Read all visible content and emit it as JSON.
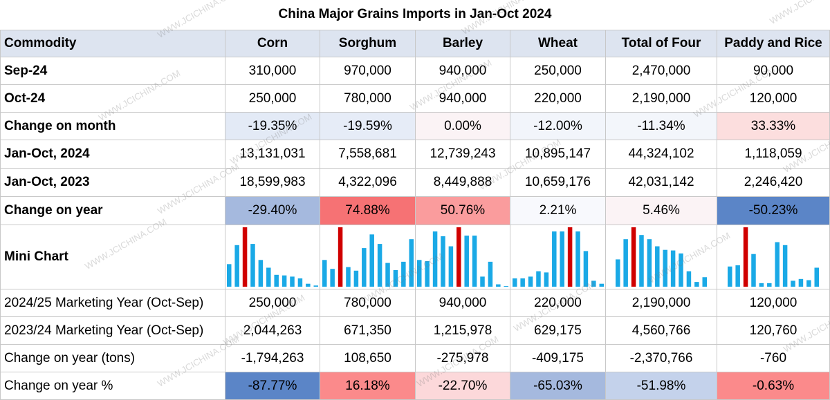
{
  "title": "China Major Grains Imports in Jan-Oct 2024",
  "header": [
    "Commodity",
    "Corn",
    "Sorghum",
    "Barley",
    "Wheat",
    "Total of Four",
    "Paddy and Rice"
  ],
  "rows": [
    {
      "label": "Sep-24",
      "bold": true,
      "cells": [
        "310,000",
        "970,000",
        "940,000",
        "250,000",
        "2,470,000",
        "90,000"
      ],
      "colors": [
        "",
        "",
        "",
        "",
        "",
        ""
      ]
    },
    {
      "label": "Oct-24",
      "bold": true,
      "cells": [
        "250,000",
        "780,000",
        "940,000",
        "220,000",
        "2,190,000",
        "120,000"
      ],
      "colors": [
        "",
        "",
        "",
        "",
        "",
        ""
      ]
    },
    {
      "label": "Change on month",
      "bold": true,
      "cells": [
        "-19.35%",
        "-19.59%",
        "0.00%",
        "-12.00%",
        "-11.34%",
        "33.33%"
      ],
      "colors": [
        "#e3eaf6",
        "#e6ecf7",
        "#fbf3f5",
        "#f2f5fb",
        "#f3f6fb",
        "#fcdede"
      ]
    },
    {
      "label": "Jan-Oct, 2024",
      "bold": true,
      "cells": [
        "13,131,031",
        "7,558,681",
        "12,739,243",
        "10,895,147",
        "44,324,102",
        "1,118,059"
      ],
      "colors": [
        "",
        "",
        "",
        "",
        "",
        ""
      ]
    },
    {
      "label": "Jan-Oct, 2023",
      "bold": true,
      "cells": [
        "18,599,983",
        "4,322,096",
        "8,449,888",
        "10,659,176",
        "42,031,142",
        "2,246,420"
      ],
      "colors": [
        "",
        "",
        "",
        "",
        "",
        ""
      ]
    },
    {
      "label": "Change on year",
      "bold": true,
      "cells": [
        "-29.40%",
        "74.88%",
        "50.76%",
        "2.21%",
        "5.46%",
        "-50.23%"
      ],
      "colors": [
        "#a5b9de",
        "#f67274",
        "#fa9c9d",
        "#f8f9fd",
        "#fbf3f5",
        "#5b85c7"
      ]
    }
  ],
  "mini_chart_label": "Mini Chart",
  "chart_data": {
    "type": "bar",
    "series": [
      {
        "column": "Corn",
        "values": [
          38,
          70,
          100,
          72,
          45,
          32,
          20,
          19,
          17,
          14,
          5,
          2
        ],
        "highlight_index": 2
      },
      {
        "column": "Sorghum",
        "values": [
          45,
          30,
          100,
          33,
          27,
          65,
          88,
          72,
          40,
          28,
          42,
          80
        ],
        "highlight_index": 2
      },
      {
        "column": "Barley",
        "values": [
          45,
          43,
          93,
          85,
          68,
          100,
          86,
          86,
          17,
          42,
          4,
          0
        ],
        "highlight_index": 5
      },
      {
        "column": "Wheat",
        "values": [
          14,
          14,
          17,
          26,
          24,
          93,
          93,
          100,
          93,
          60,
          10,
          5
        ],
        "highlight_index": 7
      },
      {
        "column": "Total of Four",
        "values": [
          46,
          80,
          100,
          87,
          80,
          68,
          62,
          61,
          56,
          26,
          8,
          16
        ],
        "highlight_index": 2
      },
      {
        "column": "Paddy and Rice",
        "values": [
          34,
          36,
          100,
          55,
          6,
          6,
          75,
          70,
          10,
          13,
          11,
          32
        ],
        "highlight_index": 2
      }
    ],
    "colors": {
      "bar": "#1aa9e6",
      "highlight": "#d00000"
    }
  },
  "my_rows": [
    {
      "label": "2024/25 Marketing Year (Oct-Sep)",
      "cells": [
        "250,000",
        "780,000",
        "940,000",
        "220,000",
        "2,190,000",
        "120,000"
      ],
      "colors": [
        "",
        "",
        "",
        "",
        "",
        ""
      ]
    },
    {
      "label": "2023/24 Marketing Year (Oct-Sep)",
      "cells": [
        "2,044,263",
        "671,350",
        "1,215,978",
        "629,175",
        "4,560,766",
        "120,760"
      ],
      "colors": [
        "",
        "",
        "",
        "",
        "",
        ""
      ]
    },
    {
      "label": "Change on year (tons)",
      "cells": [
        "-1,794,263",
        "108,650",
        "-275,978",
        "-409,175",
        "-2,370,766",
        "-760"
      ],
      "colors": [
        "",
        "",
        "",
        "",
        "",
        ""
      ]
    },
    {
      "label": "Change on year %",
      "cells": [
        "-87.77%",
        "16.18%",
        "-22.70%",
        "-65.03%",
        "-51.98%",
        "-0.63%"
      ],
      "colors": [
        "#5b85c7",
        "#fb8a8b",
        "#fcd8da",
        "#a5b9de",
        "#c4d2eb",
        "#fb8a8b"
      ]
    }
  ],
  "watermark": "WWW.JCICHINA.COM"
}
